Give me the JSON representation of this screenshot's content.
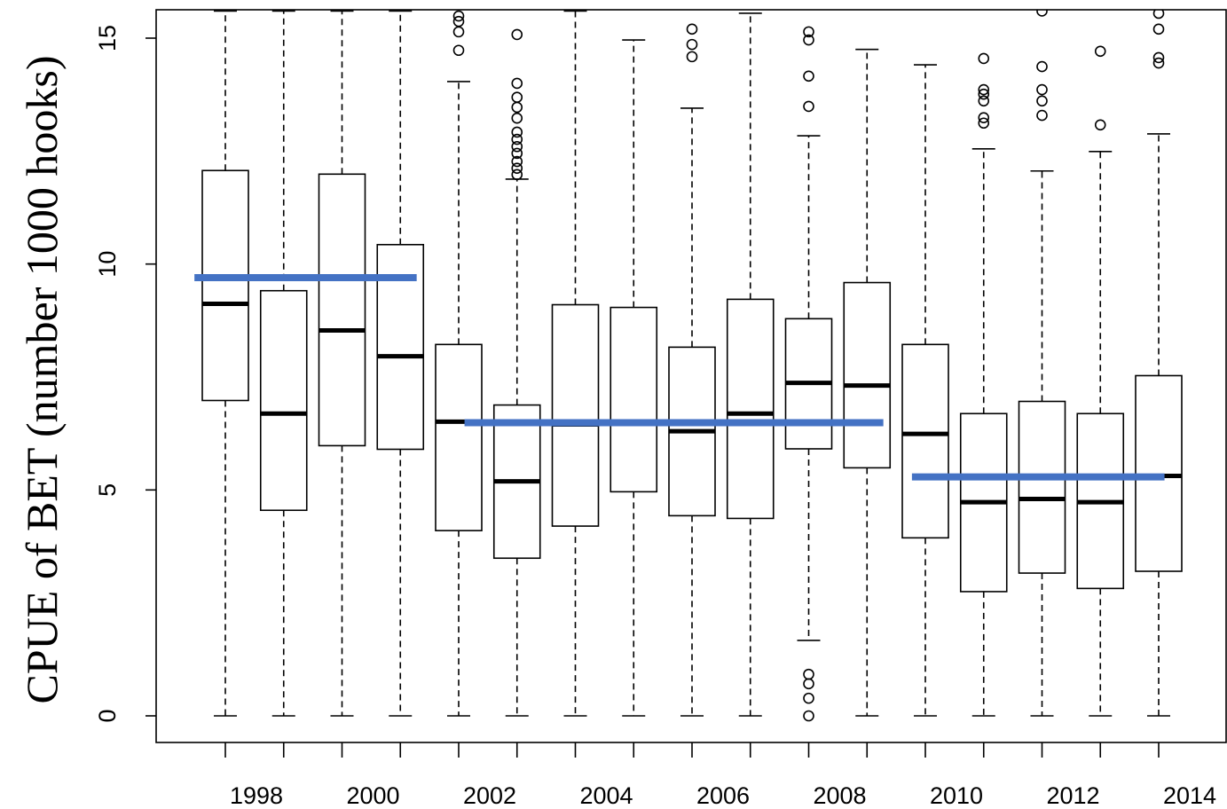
{
  "chart_data": {
    "type": "boxplot",
    "title": "",
    "xlabel": "",
    "ylabel": "CPUE of BET (number 1000 hooks)",
    "ylim": [
      -0.6,
      15.6
    ],
    "yticks": [
      0,
      5,
      10,
      15
    ],
    "years": [
      1998,
      1999,
      2000,
      2001,
      2002,
      2003,
      2004,
      2005,
      2006,
      2007,
      2008,
      2009,
      2010,
      2011,
      2012,
      2013,
      2014
    ],
    "xtick_labels": [
      "1998",
      "2000",
      "2002",
      "2004",
      "2006",
      "2008",
      "2010",
      "2012",
      "2014"
    ],
    "xtick_label_years": [
      1998,
      2000,
      2002,
      2004,
      2006,
      2008,
      2010,
      2012,
      2014
    ],
    "grid": false,
    "legend": "none",
    "boxes": [
      {
        "year": 1998,
        "whisker_low": 0,
        "q1": 6.98,
        "median": 9.12,
        "q3": 12.07,
        "whisker_high": 15.6,
        "outliers": []
      },
      {
        "year": 1999,
        "whisker_low": 0,
        "q1": 4.55,
        "median": 6.69,
        "q3": 9.41,
        "whisker_high": 15.6,
        "outliers": []
      },
      {
        "year": 2000,
        "whisker_low": 0,
        "q1": 5.98,
        "median": 8.53,
        "q3": 11.99,
        "whisker_high": 15.6,
        "outliers": []
      },
      {
        "year": 2001,
        "whisker_low": 0,
        "q1": 5.9,
        "median": 7.96,
        "q3": 10.43,
        "whisker_high": 15.6,
        "outliers": []
      },
      {
        "year": 2002,
        "whisker_low": 0,
        "q1": 4.1,
        "median": 6.51,
        "q3": 8.22,
        "whisker_high": 14.04,
        "outliers": [
          14.73,
          15.14,
          15.37,
          15.49
        ]
      },
      {
        "year": 2003,
        "whisker_low": 0,
        "q1": 3.49,
        "median": 5.19,
        "q3": 6.88,
        "whisker_high": 11.88,
        "outliers": [
          11.98,
          12.12,
          12.27,
          12.45,
          12.6,
          12.76,
          12.92,
          13.23,
          13.47,
          13.69,
          14.0,
          15.08
        ]
      },
      {
        "year": 2004,
        "whisker_low": 0,
        "q1": 4.2,
        "median": 6.45,
        "q3": 9.1,
        "whisker_high": 15.6,
        "outliers": []
      },
      {
        "year": 2005,
        "whisker_low": 0,
        "q1": 4.96,
        "median": 6.51,
        "q3": 9.04,
        "whisker_high": 14.96,
        "outliers": []
      },
      {
        "year": 2006,
        "whisker_low": 0,
        "q1": 4.43,
        "median": 6.3,
        "q3": 8.16,
        "whisker_high": 13.45,
        "outliers": [
          14.59,
          14.86,
          15.2
        ]
      },
      {
        "year": 2007,
        "whisker_low": 0,
        "q1": 4.37,
        "median": 6.69,
        "q3": 9.22,
        "whisker_high": 15.55,
        "outliers": []
      },
      {
        "year": 2008,
        "whisker_low": 1.67,
        "q1": 5.91,
        "median": 7.37,
        "q3": 8.79,
        "whisker_high": 12.84,
        "outliers": [
          0.0,
          0.39,
          0.71,
          0.92,
          13.49,
          14.16,
          14.96,
          15.14
        ]
      },
      {
        "year": 2009,
        "whisker_low": 0,
        "q1": 5.49,
        "median": 7.31,
        "q3": 9.59,
        "whisker_high": 14.75,
        "outliers": []
      },
      {
        "year": 2010,
        "whisker_low": 0,
        "q1": 3.94,
        "median": 6.24,
        "q3": 8.22,
        "whisker_high": 14.41,
        "outliers": []
      },
      {
        "year": 2011,
        "whisker_low": 0,
        "q1": 2.75,
        "median": 4.73,
        "q3": 6.69,
        "whisker_high": 12.55,
        "outliers": [
          13.12,
          13.24,
          13.61,
          13.76,
          13.86,
          14.55
        ]
      },
      {
        "year": 2012,
        "whisker_low": 0,
        "q1": 3.16,
        "median": 4.8,
        "q3": 6.96,
        "whisker_high": 12.06,
        "outliers": [
          13.29,
          13.61,
          13.86,
          14.37,
          15.6
        ]
      },
      {
        "year": 2013,
        "whisker_low": 0,
        "q1": 2.82,
        "median": 4.73,
        "q3": 6.69,
        "whisker_high": 12.49,
        "outliers": [
          13.08,
          14.71
        ]
      },
      {
        "year": 2014,
        "whisker_low": 0,
        "q1": 3.2,
        "median": 5.31,
        "q3": 7.53,
        "whisker_high": 12.88,
        "outliers": [
          14.45,
          14.57,
          15.2,
          15.55
        ]
      }
    ],
    "mean_lines": [
      {
        "from_year": 1997.47,
        "to_year": 2001.28,
        "value": 9.7
      },
      {
        "from_year": 2002.1,
        "to_year": 2009.28,
        "value": 6.49
      },
      {
        "from_year": 2009.77,
        "to_year": 2014.1,
        "value": 5.29
      }
    ],
    "colors": {
      "box_stroke": "#000000",
      "median": "#000000",
      "mean_line": "#4472C4",
      "background": "#ffffff"
    }
  }
}
